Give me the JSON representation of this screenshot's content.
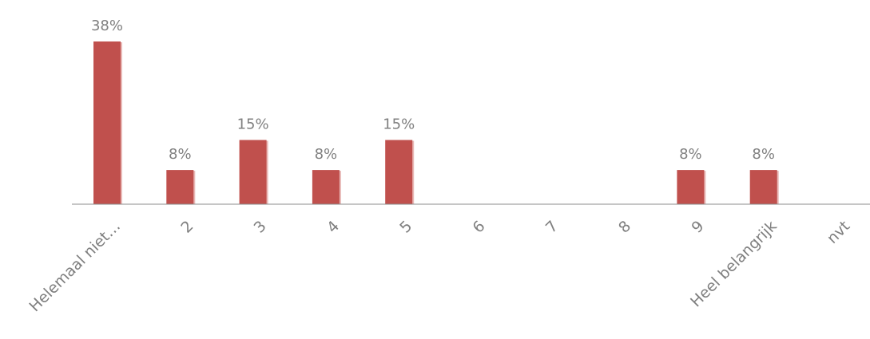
{
  "chart_data": {
    "type": "bar",
    "categories": [
      "Helemaal niet…",
      "2",
      "3",
      "4",
      "5",
      "6",
      "7",
      "8",
      "9",
      "Heel belangrijk",
      "nvt"
    ],
    "values": [
      38,
      8,
      15,
      8,
      15,
      0,
      0,
      0,
      8,
      8,
      0
    ],
    "data_labels": [
      "38%",
      "8%",
      "15%",
      "8%",
      "15%",
      "",
      "",
      "",
      "8%",
      "8%",
      ""
    ],
    "title": "",
    "xlabel": "",
    "ylabel": "",
    "ylim": [
      0,
      38
    ],
    "grid": false,
    "legend": "none",
    "colors": {
      "bar": "#c0504d",
      "bar_shadow": "#e8b8b6",
      "axis": "#8c8c8c",
      "label_text": "#7f7f7f"
    }
  }
}
